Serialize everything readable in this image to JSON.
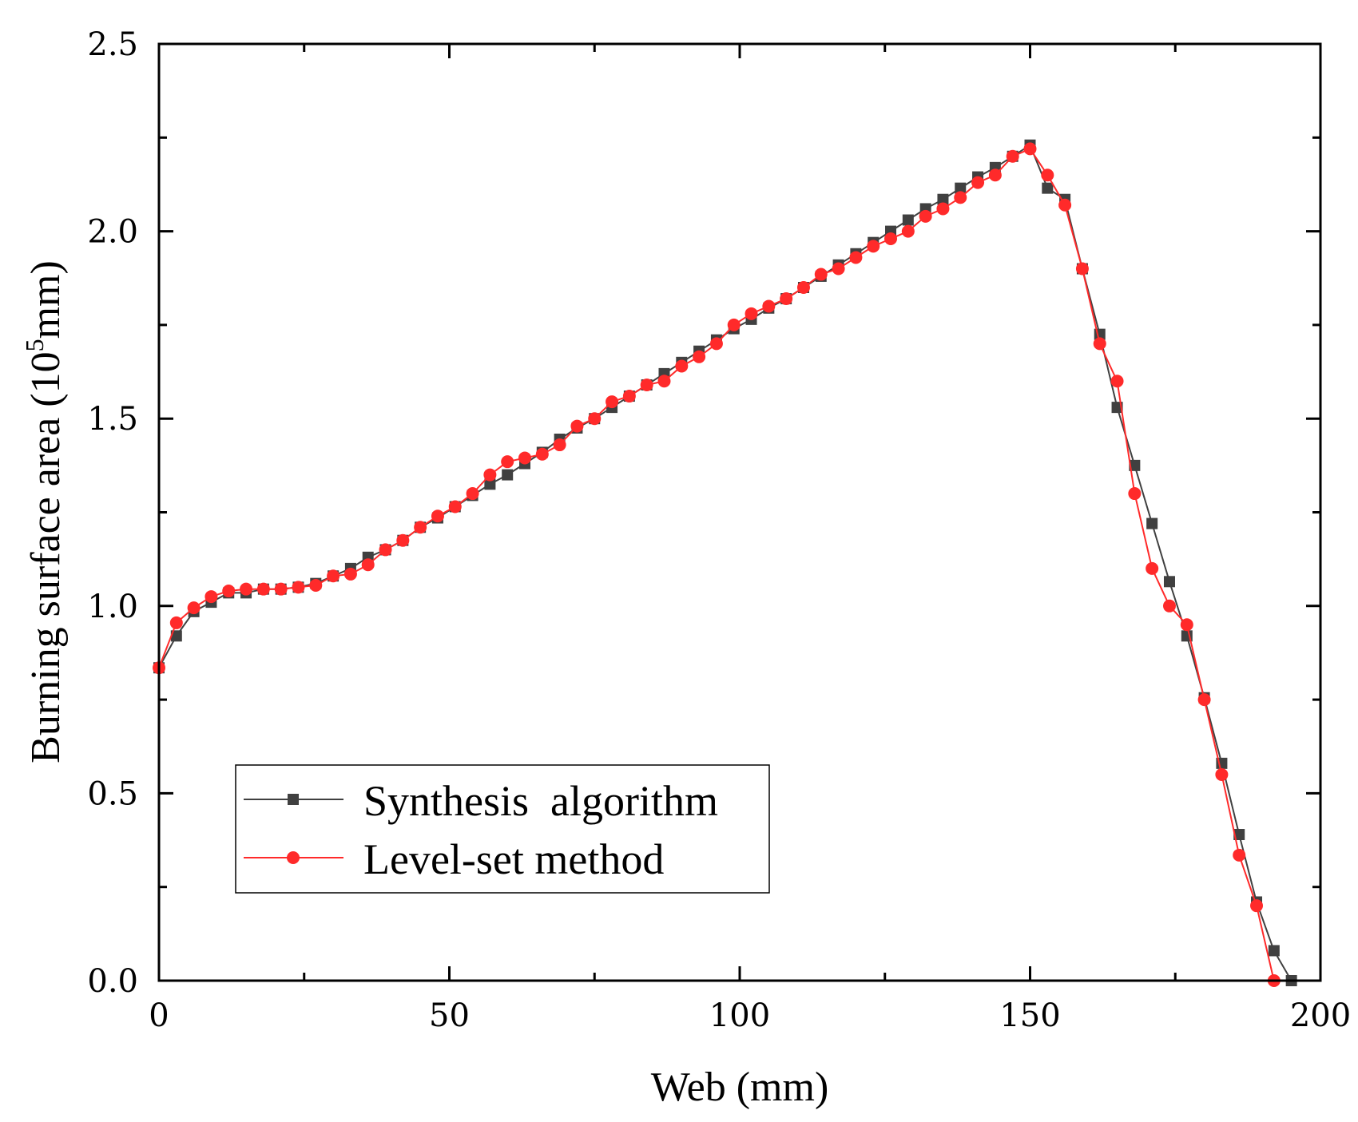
{
  "chart_data": {
    "type": "line",
    "title": "",
    "xlabel": "Web (mm)",
    "ylabel_main": "Burning surface area (10",
    "ylabel_sup": "5",
    "ylabel_end": "mm)",
    "xlim": [
      0,
      200
    ],
    "ylim": [
      0,
      2.5
    ],
    "xticks": [
      0,
      50,
      100,
      150,
      200
    ],
    "xtick_labels": [
      "0",
      "50",
      "100",
      "150",
      "200"
    ],
    "yticks": [
      0,
      0.5,
      1.0,
      1.5,
      2.0,
      2.5
    ],
    "ytick_labels": [
      "0.0",
      "0.5",
      "1.0",
      "1.5",
      "2.0",
      "2.5"
    ],
    "grid": false,
    "legend_position": "bottom-left",
    "series": [
      {
        "name": "Synthesis  algorithm",
        "color": "#404040",
        "marker": "square",
        "x": [
          0,
          3,
          6,
          9,
          12,
          15,
          18,
          21,
          24,
          27,
          30,
          33,
          36,
          39,
          42,
          45,
          48,
          51,
          54,
          57,
          60,
          63,
          66,
          69,
          72,
          75,
          78,
          81,
          84,
          87,
          90,
          93,
          96,
          99,
          102,
          105,
          108,
          111,
          114,
          117,
          120,
          123,
          126,
          129,
          132,
          135,
          138,
          141,
          144,
          147,
          150,
          153,
          156,
          159,
          162,
          165,
          168,
          171,
          174,
          177,
          180,
          183,
          186,
          189,
          192,
          195
        ],
        "y": [
          0.835,
          0.92,
          0.985,
          1.01,
          1.035,
          1.035,
          1.045,
          1.045,
          1.05,
          1.06,
          1.08,
          1.1,
          1.13,
          1.15,
          1.175,
          1.21,
          1.235,
          1.265,
          1.295,
          1.325,
          1.35,
          1.38,
          1.41,
          1.445,
          1.475,
          1.5,
          1.53,
          1.56,
          1.59,
          1.62,
          1.65,
          1.68,
          1.71,
          1.74,
          1.765,
          1.795,
          1.82,
          1.85,
          1.88,
          1.91,
          1.94,
          1.97,
          2.0,
          2.03,
          2.06,
          2.085,
          2.115,
          2.145,
          2.17,
          2.2,
          2.23,
          2.115,
          2.085,
          1.9,
          1.725,
          1.53,
          1.375,
          1.22,
          1.065,
          0.92,
          0.755,
          0.58,
          0.39,
          0.21,
          0.08,
          0.0
        ]
      },
      {
        "name": "Level-set method",
        "color": "#ff2a2a",
        "marker": "circle",
        "x": [
          0,
          3,
          6,
          9,
          12,
          15,
          18,
          21,
          24,
          27,
          30,
          33,
          36,
          39,
          42,
          45,
          48,
          51,
          54,
          57,
          60,
          63,
          66,
          69,
          72,
          75,
          78,
          81,
          84,
          87,
          90,
          93,
          96,
          99,
          102,
          105,
          108,
          111,
          114,
          117,
          120,
          123,
          126,
          129,
          132,
          135,
          138,
          141,
          144,
          147,
          150,
          153,
          156,
          159,
          162,
          165,
          168,
          171,
          174,
          177,
          180,
          183,
          186,
          189,
          192
        ],
        "y": [
          0.835,
          0.955,
          0.995,
          1.025,
          1.04,
          1.045,
          1.045,
          1.045,
          1.05,
          1.055,
          1.08,
          1.085,
          1.11,
          1.15,
          1.175,
          1.21,
          1.24,
          1.265,
          1.3,
          1.35,
          1.385,
          1.395,
          1.405,
          1.43,
          1.48,
          1.5,
          1.545,
          1.56,
          1.59,
          1.6,
          1.64,
          1.665,
          1.7,
          1.75,
          1.78,
          1.8,
          1.82,
          1.85,
          1.885,
          1.9,
          1.93,
          1.96,
          1.98,
          2.0,
          2.04,
          2.06,
          2.09,
          2.13,
          2.15,
          2.2,
          2.22,
          2.15,
          2.07,
          1.9,
          1.7,
          1.6,
          1.3,
          1.1,
          1.0,
          0.95,
          0.75,
          0.55,
          0.335,
          0.2,
          0.0
        ]
      }
    ]
  }
}
